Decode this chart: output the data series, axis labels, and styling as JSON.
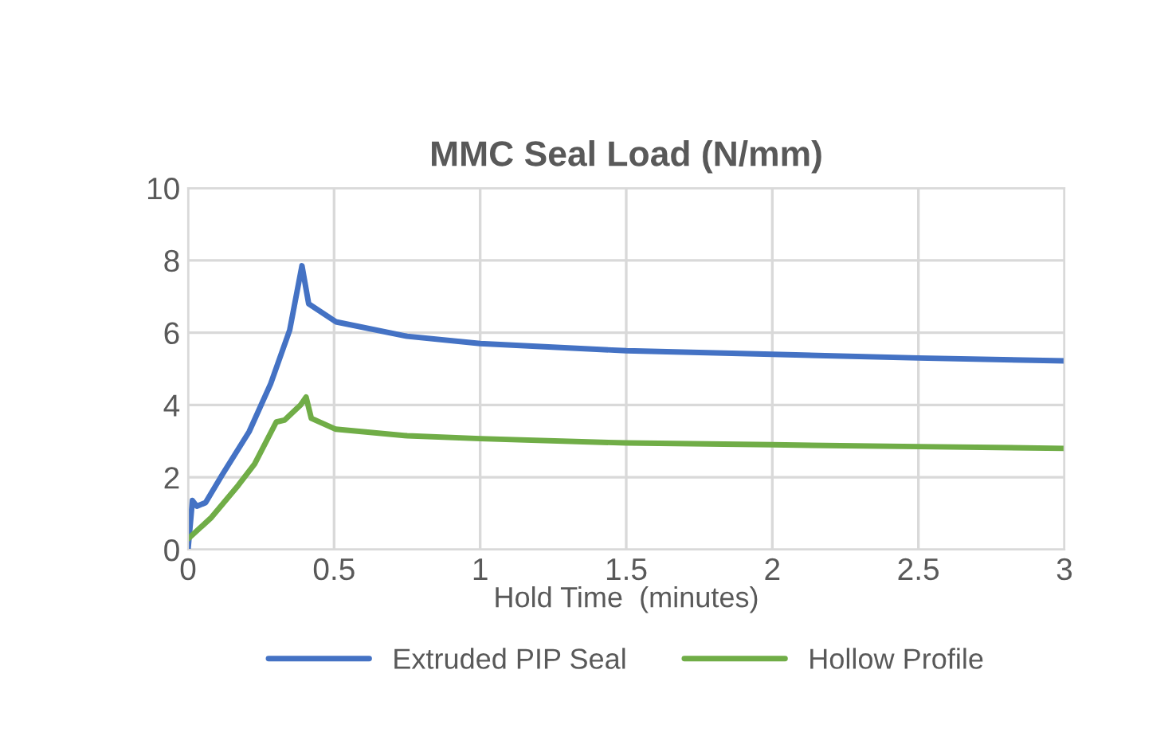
{
  "chart_data": {
    "type": "line",
    "title": "MMC Seal Load (N/mm)",
    "xlabel": "Hold Time  (minutes)",
    "xlim": [
      0,
      3
    ],
    "xticks": [
      0,
      0.5,
      1,
      1.5,
      2,
      2.5,
      3
    ],
    "ylim": [
      0,
      10
    ],
    "yticks": [
      0,
      2,
      4,
      6,
      8,
      10
    ],
    "grid": true,
    "legend": "bottom",
    "marker": "none",
    "line_style": "solid",
    "series": [
      {
        "name": "Extruded PIP Seal",
        "color": "#4472c4",
        "x": [
          0,
          0.015,
          0.03,
          0.06,
          0.117,
          0.209,
          0.283,
          0.348,
          0.39,
          0.413,
          0.506,
          0.75,
          1,
          1.5,
          2,
          2.5,
          3
        ],
        "values": [
          0,
          1.36,
          1.2,
          1.3,
          2.07,
          3.26,
          4.59,
          6.07,
          7.85,
          6.8,
          6.3,
          5.9,
          5.7,
          5.5,
          5.4,
          5.3,
          5.22
        ]
      },
      {
        "name": "Hollow Profile",
        "color": "#70ad47",
        "x": [
          0,
          0.08,
          0.172,
          0.228,
          0.302,
          0.33,
          0.385,
          0.404,
          0.422,
          0.506,
          0.75,
          1,
          1.5,
          2,
          2.5,
          3
        ],
        "values": [
          0.3,
          0.89,
          1.78,
          2.37,
          3.53,
          3.58,
          4.0,
          4.22,
          3.63,
          3.33,
          3.15,
          3.07,
          2.95,
          2.9,
          2.85,
          2.8
        ]
      }
    ]
  }
}
